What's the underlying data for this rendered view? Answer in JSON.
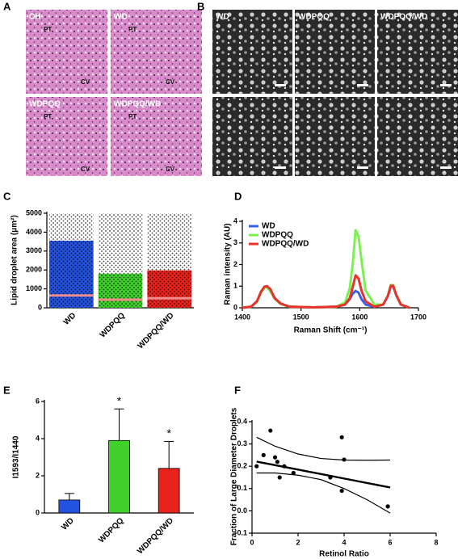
{
  "image_panels": [
    {
      "label": "A",
      "tiles": [
        {
          "labels": [
            "CH",
            "PT",
            "CV"
          ]
        },
        {
          "labels": [
            "WD",
            "PT",
            "CV"
          ]
        },
        {
          "labels": [
            "WDPQQ",
            "PT",
            "CV"
          ]
        },
        {
          "labels": [
            "WDPQQ/WD",
            "PT",
            "CV"
          ]
        }
      ]
    },
    {
      "label": "B",
      "tiles": [
        {
          "labels": [
            "WD"
          ]
        },
        {
          "labels": [
            "WDPQQ"
          ]
        },
        {
          "labels": [
            "WDPQQ/WD"
          ]
        },
        {
          "labels": []
        },
        {
          "labels": []
        },
        {
          "labels": []
        }
      ]
    }
  ],
  "chart_data": [
    {
      "type": "bar",
      "panel_label": "C",
      "ylabel": "Lipid droplet area (μm²)",
      "categories": [
        "WD",
        "WDPQQ",
        "WDPQQ/WD"
      ],
      "values": [
        3550,
        1800,
        1980
      ],
      "medians": [
        650,
        430,
        500
      ],
      "colors": [
        "#2452e0",
        "#3fd12a",
        "#e8231c"
      ],
      "median_color": "#f08c8c",
      "ylim": [
        0,
        5000
      ],
      "yticks": [
        0,
        1000,
        2000,
        3000,
        4000,
        5000
      ]
    },
    {
      "type": "line",
      "panel_label": "D",
      "xlabel": "Raman Shift (cm⁻¹)",
      "ylabel": "Raman intensity (AU)",
      "x": [
        1400,
        1415,
        1425,
        1432,
        1438,
        1442,
        1448,
        1455,
        1465,
        1480,
        1520,
        1560,
        1575,
        1583,
        1588,
        1593,
        1598,
        1603,
        1610,
        1625,
        1640,
        1648,
        1653,
        1657,
        1662,
        1670,
        1685
      ],
      "series": [
        {
          "name": "WD",
          "color": "#3a5fe8",
          "values": [
            0.0,
            0.05,
            0.3,
            0.75,
            0.98,
            1.0,
            0.8,
            0.45,
            0.2,
            0.05,
            0.02,
            0.05,
            0.15,
            0.4,
            0.65,
            0.78,
            0.7,
            0.4,
            0.15,
            0.05,
            0.15,
            0.55,
            1.0,
            1.0,
            0.6,
            0.15,
            0.0
          ]
        },
        {
          "name": "WDPQQ",
          "color": "#7cf050",
          "values": [
            0.0,
            0.05,
            0.28,
            0.72,
            0.93,
            0.95,
            0.75,
            0.42,
            0.18,
            0.05,
            0.02,
            0.05,
            0.25,
            0.9,
            2.0,
            3.6,
            3.3,
            2.2,
            0.8,
            0.15,
            0.15,
            0.58,
            1.05,
            1.05,
            0.62,
            0.15,
            0.0
          ]
        },
        {
          "name": "WDPQQ/WD",
          "color": "#e8322a",
          "values": [
            0.0,
            0.05,
            0.3,
            0.75,
            0.98,
            1.0,
            0.85,
            0.45,
            0.2,
            0.05,
            0.02,
            0.05,
            0.15,
            0.45,
            0.95,
            1.5,
            1.35,
            0.8,
            0.3,
            0.05,
            0.15,
            0.55,
            1.02,
            1.02,
            0.6,
            0.15,
            0.0
          ]
        }
      ],
      "legend": "upper left",
      "xlim": [
        1400,
        1700
      ],
      "xticks": [
        1400,
        1500,
        1600,
        1700
      ],
      "ylim": [
        0,
        4
      ],
      "yticks": [
        0,
        1,
        2,
        3,
        4
      ]
    },
    {
      "type": "bar",
      "panel_label": "E",
      "ylabel": "I1593/I1440",
      "categories": [
        "WD",
        "WDPQQ",
        "WDPQQ/WD"
      ],
      "values": [
        0.7,
        3.9,
        2.4
      ],
      "errors": [
        0.35,
        1.7,
        1.45
      ],
      "significance": [
        null,
        "*",
        "*"
      ],
      "colors": [
        "#2452e0",
        "#3fd12a",
        "#e8231c"
      ],
      "ylim": [
        0,
        6
      ],
      "yticks": [
        0,
        2,
        4,
        6
      ]
    },
    {
      "type": "scatter",
      "panel_label": "F",
      "xlabel": "Retinol Ratio",
      "ylabel": "Fraction of Large Diameter Droplets",
      "x": [
        0.2,
        0.5,
        0.8,
        1.0,
        1.1,
        1.2,
        1.4,
        1.8,
        3.4,
        3.9,
        4.0,
        3.9,
        5.9
      ],
      "values": [
        0.2,
        0.25,
        0.36,
        0.24,
        0.22,
        0.15,
        0.2,
        0.17,
        0.15,
        0.33,
        0.23,
        0.09,
        0.02
      ],
      "fit": {
        "x": [
          0.2,
          1,
          2,
          3,
          4,
          5,
          6
        ],
        "y": [
          0.221,
          0.205,
          0.185,
          0.165,
          0.145,
          0.125,
          0.105
        ],
        "upper": [
          0.33,
          0.29,
          0.255,
          0.235,
          0.228,
          0.227,
          0.228
        ],
        "lower": [
          0.17,
          0.17,
          0.16,
          0.14,
          0.1,
          0.05,
          -0.01
        ]
      },
      "xlim": [
        0,
        8
      ],
      "xticks": [
        0,
        2,
        4,
        6,
        8
      ],
      "ylim": [
        -0.1,
        0.4
      ],
      "yticks": [
        -0.1,
        {
          "value": 0,
          "label": "0.0"
        },
        0.1,
        0.2,
        0.3,
        0.4
      ]
    }
  ]
}
